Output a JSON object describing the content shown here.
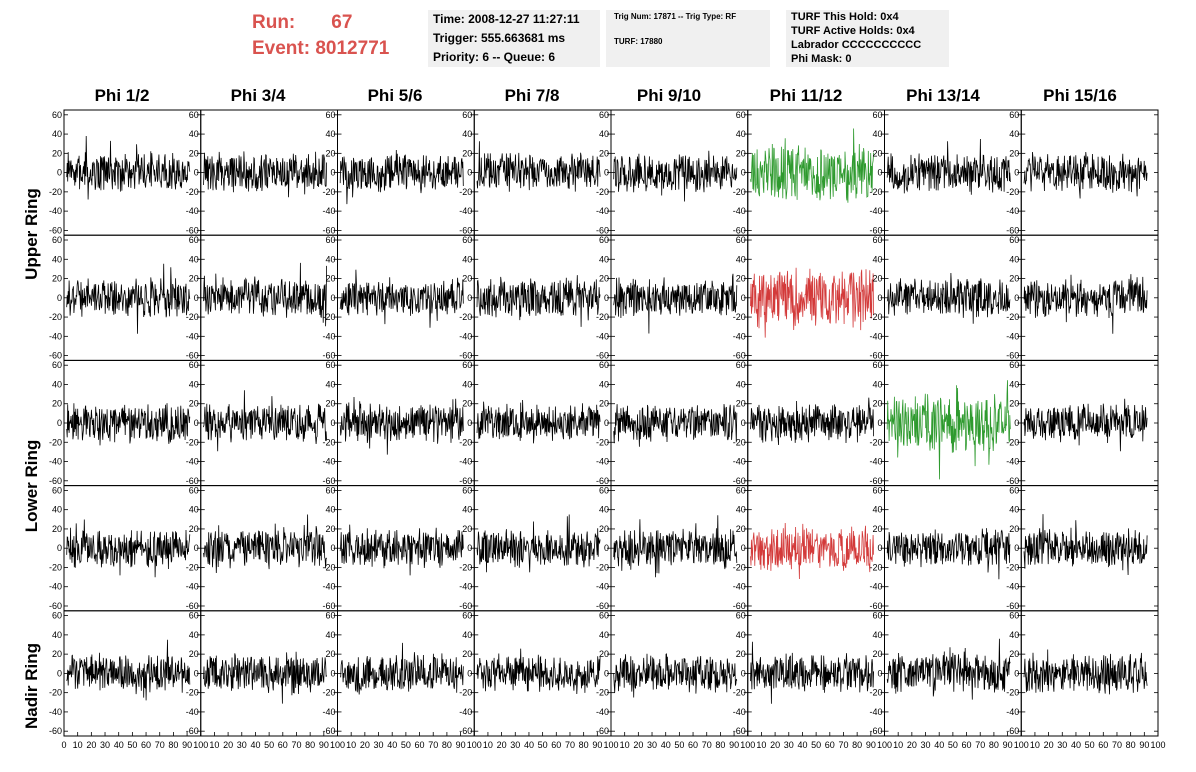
{
  "header": {
    "run_label": "Run:",
    "run_value": "67",
    "event_label": "Event:",
    "event_value": "8012771",
    "time_line": "Time: 2008-12-27 11:27:11",
    "trigger_line": "Trigger: 555.663681 ms",
    "priority_line": "Priority: 6 -- Queue: 6",
    "trig_num_line": "Trig Num: 17871 -- Trig Type: RF",
    "turf_line": "TURF: 17880",
    "turf_this_hold": "TURF This Hold: 0x4",
    "turf_active_holds": "TURF Active Holds: 0x4",
    "labrador": "Labrador CCCCCCCCCC",
    "phi_mask": "Phi Mask: 0"
  },
  "columns": [
    "Phi 1/2",
    "Phi 3/4",
    "Phi 5/6",
    "Phi 7/8",
    "Phi 9/10",
    "Phi 11/12",
    "Phi 13/14",
    "Phi 15/16"
  ],
  "rows": [
    "Upper Ring",
    "Lower Ring",
    "Nadir Ring"
  ],
  "chart_data": {
    "type": "line",
    "grid_rows": 5,
    "grid_cols": 8,
    "row_groups": [
      {
        "name": "Upper Ring",
        "rows": [
          0,
          1
        ]
      },
      {
        "name": "Lower Ring",
        "rows": [
          2,
          3
        ]
      },
      {
        "name": "Nadir Ring",
        "rows": [
          4
        ]
      }
    ],
    "ylim": [
      -65,
      65
    ],
    "yticks": [
      -60,
      -40,
      -20,
      0,
      20,
      40,
      60
    ],
    "xlim": [
      0,
      100
    ],
    "xticks": [
      0,
      10,
      20,
      30,
      40,
      50,
      60,
      70,
      80,
      90,
      100
    ],
    "samples_per_trace": 260,
    "highlighted_panels": [
      {
        "row": 0,
        "col": 5,
        "color": "#2e9a2e",
        "amplitude": 24
      },
      {
        "row": 1,
        "col": 5,
        "color": "#d33a3a",
        "amplitude": 26
      },
      {
        "row": 2,
        "col": 6,
        "color": "#2e9a2e",
        "amplitude": 26
      },
      {
        "row": 3,
        "col": 5,
        "color": "#d33a3a",
        "amplitude": 20
      }
    ],
    "default_trace_color": "#000000",
    "default_amplitude": 17
  }
}
